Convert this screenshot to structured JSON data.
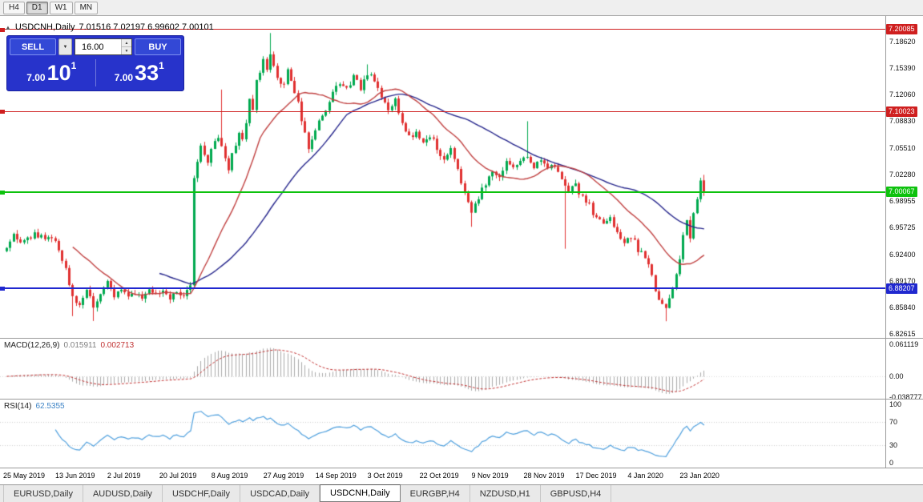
{
  "toolbar": {
    "timeframes": [
      {
        "label": "H4",
        "active": false
      },
      {
        "label": "D1",
        "active": true
      },
      {
        "label": "W1",
        "active": false
      },
      {
        "label": "MN",
        "active": false
      }
    ]
  },
  "icons": {
    "chart_arrow": "▲",
    "dropdown": "▼",
    "spinner_up": "▲",
    "spinner_down": "▼"
  },
  "symbol_header": {
    "symbol": "USDCNH,Daily",
    "ohlc_text": "7.01516 7.02197 6.99602 7.00101"
  },
  "trade_widget": {
    "sell_label": "SELL",
    "buy_label": "BUY",
    "lot_value": "16.00",
    "sell_price": {
      "small": "7.00",
      "big": "10",
      "sup": "1"
    },
    "buy_price": {
      "small": "7.00",
      "big": "33",
      "sup": "1"
    }
  },
  "price_axis": {
    "labels": [
      "7.18620",
      "7.15390",
      "7.12060",
      "7.08830",
      "7.05510",
      "7.02280",
      "6.98955",
      "6.95725",
      "6.92400",
      "6.89170",
      "6.85840",
      "6.82615"
    ]
  },
  "macd_panel": {
    "name": "MACD(12,26,9)",
    "value_main": "0.015911",
    "value_signal": "0.002713",
    "axis_labels": [
      "0.061119",
      "0.00",
      "-0.038777"
    ]
  },
  "rsi_panel": {
    "name": "RSI(14)",
    "value": "62.5355",
    "axis_labels": [
      "100",
      "70",
      "30",
      "0"
    ],
    "levels": [
      70,
      30
    ]
  },
  "date_axis": {
    "labels": [
      "25 May 2019",
      "13 Jun 2019",
      "2 Jul 2019",
      "20 Jul 2019",
      "8 Aug 2019",
      "27 Aug 2019",
      "14 Sep 2019",
      "3 Oct 2019",
      "22 Oct 2019",
      "9 Nov 2019",
      "28 Nov 2019",
      "17 Dec 2019",
      "4 Jan 2020",
      "23 Jan 2020"
    ],
    "tick_bar_indices": [
      0,
      15,
      30,
      45,
      60,
      75,
      90,
      105,
      120,
      135,
      150,
      165,
      180,
      195
    ]
  },
  "tabs": [
    {
      "label": "EURUSD,Daily",
      "active": false
    },
    {
      "label": "AUDUSD,Daily",
      "active": false
    },
    {
      "label": "USDCHF,Daily",
      "active": false
    },
    {
      "label": "USDCAD,Daily",
      "active": false
    },
    {
      "label": "USDCNH,Daily",
      "active": true
    },
    {
      "label": "EURGBP,H4",
      "active": false
    },
    {
      "label": "NZDUSD,H1",
      "active": false
    },
    {
      "label": "GBPUSD,H4",
      "active": false
    }
  ],
  "chart_data": {
    "type": "candlestick",
    "title": "USDCNH,Daily",
    "bars": 202,
    "price_range": [
      6.8212,
      7.2176
    ],
    "current_bar": {
      "open": 7.01516,
      "high": 7.02197,
      "low": 6.99602,
      "close": 7.00101
    },
    "colors": {
      "up": "#00A94F",
      "down": "#E03030",
      "background": "#FFFFFF"
    },
    "hlines": [
      {
        "price": 7.20085,
        "label": "7.20085",
        "color": "#CF1F1F",
        "width": 1
      },
      {
        "price": 7.10023,
        "label": "7.10023",
        "color": "#CF1F1F",
        "width": 1
      },
      {
        "price": 7.00067,
        "label": "7.00067",
        "color": "#0DC20D",
        "width": 2
      },
      {
        "price": 6.88207,
        "label": "6.88207",
        "color": "#2028CF",
        "width": 2
      }
    ],
    "close_path_anchors": [
      [
        0,
        6.932
      ],
      [
        2,
        6.945
      ],
      [
        5,
        6.938
      ],
      [
        8,
        6.948
      ],
      [
        11,
        6.942
      ],
      [
        13,
        6.948
      ],
      [
        15,
        6.928
      ],
      [
        17,
        6.905
      ],
      [
        19,
        6.872
      ],
      [
        21,
        6.858
      ],
      [
        23,
        6.884
      ],
      [
        25,
        6.862
      ],
      [
        27,
        6.871
      ],
      [
        29,
        6.888
      ],
      [
        31,
        6.872
      ],
      [
        33,
        6.882
      ],
      [
        35,
        6.869
      ],
      [
        37,
        6.878
      ],
      [
        39,
        6.872
      ],
      [
        41,
        6.88
      ],
      [
        43,
        6.873
      ],
      [
        45,
        6.878
      ],
      [
        47,
        6.872
      ],
      [
        49,
        6.88
      ],
      [
        51,
        6.875
      ],
      [
        53,
        6.886
      ],
      [
        54,
        7.018
      ],
      [
        55,
        7.038
      ],
      [
        56,
        7.058
      ],
      [
        57,
        7.048
      ],
      [
        58,
        7.04
      ],
      [
        59,
        7.058
      ],
      [
        60,
        7.062
      ],
      [
        61,
        7.07
      ],
      [
        62,
        7.058
      ],
      [
        63,
        7.04
      ],
      [
        64,
        7.028
      ],
      [
        65,
        7.048
      ],
      [
        66,
        7.058
      ],
      [
        67,
        7.075
      ],
      [
        68,
        7.068
      ],
      [
        69,
        7.09
      ],
      [
        70,
        7.112
      ],
      [
        71,
        7.105
      ],
      [
        72,
        7.135
      ],
      [
        73,
        7.15
      ],
      [
        74,
        7.162
      ],
      [
        75,
        7.155
      ],
      [
        76,
        7.172
      ],
      [
        77,
        7.158
      ],
      [
        78,
        7.142
      ],
      [
        79,
        7.13
      ],
      [
        80,
        7.138
      ],
      [
        81,
        7.15
      ],
      [
        82,
        7.142
      ],
      [
        83,
        7.122
      ],
      [
        84,
        7.108
      ],
      [
        85,
        7.09
      ],
      [
        86,
        7.072
      ],
      [
        87,
        7.052
      ],
      [
        88,
        7.062
      ],
      [
        89,
        7.078
      ],
      [
        90,
        7.085
      ],
      [
        92,
        7.105
      ],
      [
        94,
        7.122
      ],
      [
        96,
        7.138
      ],
      [
        98,
        7.125
      ],
      [
        100,
        7.142
      ],
      [
        102,
        7.128
      ],
      [
        104,
        7.148
      ],
      [
        106,
        7.138
      ],
      [
        108,
        7.118
      ],
      [
        110,
        7.098
      ],
      [
        112,
        7.112
      ],
      [
        114,
        7.088
      ],
      [
        116,
        7.068
      ],
      [
        118,
        7.078
      ],
      [
        120,
        7.062
      ],
      [
        122,
        7.072
      ],
      [
        124,
        7.052
      ],
      [
        126,
        7.038
      ],
      [
        128,
        7.052
      ],
      [
        130,
        7.028
      ],
      [
        132,
        6.998
      ],
      [
        134,
        6.975
      ],
      [
        136,
        6.992
      ],
      [
        138,
        7.012
      ],
      [
        140,
        7.028
      ],
      [
        142,
        7.018
      ],
      [
        144,
        7.038
      ],
      [
        146,
        7.028
      ],
      [
        148,
        7.042
      ],
      [
        150,
        7.048
      ],
      [
        152,
        7.032
      ],
      [
        154,
        7.042
      ],
      [
        156,
        7.028
      ],
      [
        158,
        7.035
      ],
      [
        160,
        7.018
      ],
      [
        162,
        7.002
      ],
      [
        164,
        7.008
      ],
      [
        166,
        6.992
      ],
      [
        168,
        6.985
      ],
      [
        170,
        6.968
      ],
      [
        172,
        6.958
      ],
      [
        174,
        6.968
      ],
      [
        176,
        6.952
      ],
      [
        178,
        6.942
      ],
      [
        180,
        6.948
      ],
      [
        182,
        6.93
      ],
      [
        184,
        6.918
      ],
      [
        186,
        6.898
      ],
      [
        188,
        6.868
      ],
      [
        190,
        6.858
      ],
      [
        192,
        6.882
      ],
      [
        194,
        6.922
      ],
      [
        195,
        6.952
      ],
      [
        196,
        6.962
      ],
      [
        197,
        6.942
      ],
      [
        198,
        6.972
      ],
      [
        199,
        6.992
      ],
      [
        200,
        7.015
      ],
      [
        201,
        7.001
      ]
    ],
    "wick_overrides": {
      "19": [
        null,
        6.848
      ],
      "25": [
        null,
        6.842
      ],
      "62": [
        7.127,
        null
      ],
      "76": [
        7.1966,
        null
      ],
      "104": [
        7.158,
        null
      ],
      "134": [
        null,
        6.958
      ],
      "150": [
        7.088,
        null
      ],
      "161": [
        null,
        6.931
      ],
      "190": [
        null,
        6.8417
      ]
    },
    "indicators": {
      "ma_fast": {
        "period": 20,
        "color": "#C04040"
      },
      "ma_slow": {
        "period": 45,
        "color": "#26268C"
      },
      "macd": {
        "fast": 12,
        "slow": 26,
        "signal": 9,
        "hist_color": "#ABABAB",
        "signal_color": "#C03030"
      },
      "rsi": {
        "period": 14,
        "color": "#4E9FDD"
      }
    }
  }
}
